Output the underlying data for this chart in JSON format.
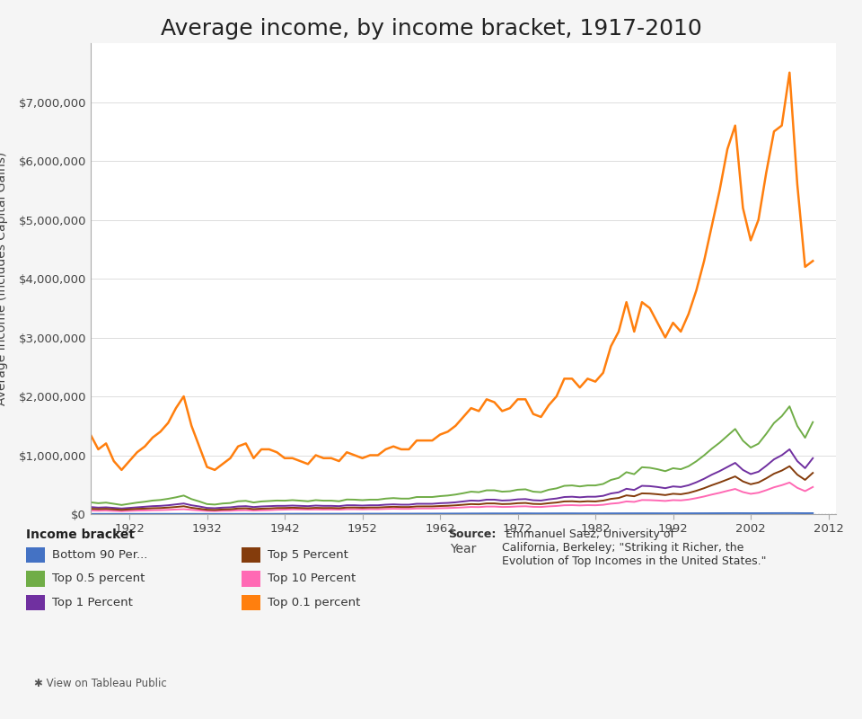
{
  "title": "Average income, by income bracket, 1917-2010",
  "xlabel": "Year",
  "ylabel": "Average Income (Includes Capital Gains)",
  "background_color": "#ffffff",
  "series": {
    "Bottom 90 Per...": {
      "color": "#4472c4",
      "data": {
        "1917": 3000,
        "1918": 3200,
        "1919": 3300,
        "1920": 3200,
        "1921": 2900,
        "1922": 3100,
        "1923": 3400,
        "1924": 3500,
        "1925": 3600,
        "1926": 3700,
        "1927": 3800,
        "1928": 3900,
        "1929": 4000,
        "1930": 3600,
        "1931": 3200,
        "1932": 2800,
        "1933": 2700,
        "1934": 2900,
        "1935": 3100,
        "1936": 3300,
        "1937": 3500,
        "1938": 3200,
        "1939": 3400,
        "1940": 3700,
        "1941": 4300,
        "1942": 5000,
        "1943": 5500,
        "1944": 5800,
        "1945": 5600,
        "1946": 5400,
        "1947": 5500,
        "1948": 5700,
        "1949": 5600,
        "1950": 6000,
        "1951": 6400,
        "1952": 6700,
        "1953": 7000,
        "1954": 6900,
        "1955": 7300,
        "1956": 7600,
        "1957": 7700,
        "1958": 7700,
        "1959": 8100,
        "1960": 8300,
        "1961": 8400,
        "1962": 8700,
        "1963": 8900,
        "1964": 9300,
        "1965": 9700,
        "1966": 10200,
        "1967": 10500,
        "1968": 11100,
        "1969": 11400,
        "1970": 11300,
        "1971": 11500,
        "1972": 12000,
        "1973": 12400,
        "1974": 11800,
        "1975": 11500,
        "1976": 12000,
        "1977": 12200,
        "1978": 12600,
        "1979": 12500,
        "1980": 12000,
        "1981": 12100,
        "1982": 11800,
        "1983": 12000,
        "1984": 12500,
        "1985": 12700,
        "1986": 13100,
        "1987": 13300,
        "1988": 13500,
        "1989": 13400,
        "1990": 13300,
        "1991": 13000,
        "1992": 13200,
        "1993": 13000,
        "1994": 13300,
        "1995": 13700,
        "1996": 14000,
        "1997": 14500,
        "1998": 15000,
        "1999": 15500,
        "2000": 15800,
        "2001": 15400,
        "2002": 15000,
        "2003": 15200,
        "2004": 15600,
        "2005": 16000,
        "2006": 16300,
        "2007": 16500,
        "2008": 15800,
        "2009": 15000,
        "2010": 15500
      }
    },
    "Top 1 Percent": {
      "color": "#7030a0",
      "data": {
        "1917": 120000,
        "1918": 110000,
        "1919": 115000,
        "1920": 105000,
        "1921": 95000,
        "1922": 105000,
        "1923": 115000,
        "1924": 125000,
        "1925": 135000,
        "1926": 140000,
        "1927": 150000,
        "1928": 165000,
        "1929": 180000,
        "1930": 150000,
        "1931": 130000,
        "1932": 105000,
        "1933": 100000,
        "1934": 110000,
        "1935": 115000,
        "1936": 130000,
        "1937": 135000,
        "1938": 120000,
        "1939": 130000,
        "1940": 135000,
        "1941": 140000,
        "1942": 140000,
        "1943": 145000,
        "1944": 140000,
        "1945": 135000,
        "1946": 145000,
        "1947": 140000,
        "1948": 140000,
        "1949": 135000,
        "1950": 150000,
        "1951": 150000,
        "1952": 145000,
        "1953": 150000,
        "1954": 150000,
        "1955": 160000,
        "1956": 165000,
        "1957": 160000,
        "1958": 160000,
        "1959": 175000,
        "1960": 175000,
        "1961": 175000,
        "1962": 185000,
        "1963": 190000,
        "1964": 200000,
        "1965": 215000,
        "1966": 230000,
        "1967": 225000,
        "1968": 245000,
        "1969": 245000,
        "1970": 230000,
        "1971": 235000,
        "1972": 250000,
        "1973": 255000,
        "1974": 235000,
        "1975": 230000,
        "1976": 250000,
        "1977": 265000,
        "1978": 290000,
        "1979": 295000,
        "1980": 285000,
        "1981": 295000,
        "1982": 295000,
        "1983": 310000,
        "1984": 350000,
        "1985": 370000,
        "1986": 430000,
        "1987": 410000,
        "1988": 480000,
        "1989": 475000,
        "1990": 460000,
        "1991": 440000,
        "1992": 470000,
        "1993": 460000,
        "1994": 490000,
        "1995": 540000,
        "1996": 600000,
        "1997": 670000,
        "1998": 730000,
        "1999": 800000,
        "2000": 870000,
        "2001": 750000,
        "2002": 680000,
        "2003": 720000,
        "2004": 820000,
        "2005": 930000,
        "2006": 1000000,
        "2007": 1100000,
        "2008": 900000,
        "2009": 780000,
        "2010": 950000
      }
    },
    "Top 10 Percent": {
      "color": "#ff69b4",
      "data": {
        "1917": 60000,
        "1918": 58000,
        "1919": 60000,
        "1920": 55000,
        "1921": 50000,
        "1922": 55000,
        "1923": 60000,
        "1924": 62000,
        "1925": 66000,
        "1926": 68000,
        "1927": 72000,
        "1928": 78000,
        "1929": 83000,
        "1930": 72000,
        "1931": 63000,
        "1932": 54000,
        "1933": 52000,
        "1934": 56000,
        "1935": 58000,
        "1936": 64000,
        "1937": 66000,
        "1938": 60000,
        "1939": 64000,
        "1940": 67000,
        "1941": 73000,
        "1942": 76000,
        "1943": 80000,
        "1944": 79000,
        "1945": 77000,
        "1946": 78000,
        "1947": 77000,
        "1948": 78000,
        "1949": 76000,
        "1950": 82000,
        "1951": 83000,
        "1952": 81000,
        "1953": 84000,
        "1954": 83000,
        "1955": 88000,
        "1956": 91000,
        "1957": 89000,
        "1958": 89000,
        "1959": 95000,
        "1960": 96000,
        "1961": 96000,
        "1962": 100000,
        "1963": 103000,
        "1964": 108000,
        "1965": 114000,
        "1966": 121000,
        "1967": 119000,
        "1968": 128000,
        "1969": 128000,
        "1970": 121000,
        "1971": 123000,
        "1972": 130000,
        "1973": 133000,
        "1974": 123000,
        "1975": 121000,
        "1976": 131000,
        "1977": 138000,
        "1978": 150000,
        "1979": 152000,
        "1980": 147000,
        "1981": 152000,
        "1982": 150000,
        "1983": 158000,
        "1984": 177000,
        "1985": 188000,
        "1986": 215000,
        "1987": 207000,
        "1988": 239000,
        "1989": 237000,
        "1990": 231000,
        "1991": 223000,
        "1992": 237000,
        "1993": 233000,
        "1994": 247000,
        "1995": 271000,
        "1996": 299000,
        "1997": 332000,
        "1998": 361000,
        "1999": 395000,
        "2000": 427000,
        "2001": 374000,
        "2002": 344000,
        "2003": 363000,
        "2004": 406000,
        "2005": 455000,
        "2006": 491000,
        "2007": 536000,
        "2008": 446000,
        "2009": 390000,
        "2010": 460000
      }
    },
    "Top 0.5 percent": {
      "color": "#70ad47",
      "data": {
        "1917": 200000,
        "1918": 185000,
        "1919": 195000,
        "1920": 175000,
        "1921": 155000,
        "1922": 175000,
        "1923": 195000,
        "1924": 210000,
        "1925": 230000,
        "1926": 240000,
        "1927": 260000,
        "1928": 285000,
        "1929": 315000,
        "1930": 255000,
        "1931": 215000,
        "1932": 170000,
        "1933": 162000,
        "1934": 180000,
        "1935": 188000,
        "1936": 218000,
        "1937": 225000,
        "1938": 197000,
        "1939": 215000,
        "1940": 222000,
        "1941": 230000,
        "1942": 228000,
        "1943": 237000,
        "1944": 228000,
        "1945": 218000,
        "1946": 237000,
        "1947": 228000,
        "1948": 228000,
        "1949": 218000,
        "1950": 248000,
        "1951": 245000,
        "1952": 237000,
        "1953": 245000,
        "1954": 245000,
        "1955": 263000,
        "1956": 272000,
        "1957": 263000,
        "1958": 263000,
        "1959": 290000,
        "1960": 290000,
        "1961": 290000,
        "1962": 305000,
        "1963": 315000,
        "1964": 332000,
        "1965": 355000,
        "1966": 381000,
        "1967": 372000,
        "1968": 404000,
        "1969": 404000,
        "1970": 381000,
        "1971": 388000,
        "1972": 414000,
        "1973": 421000,
        "1974": 381000,
        "1975": 372000,
        "1976": 414000,
        "1977": 437000,
        "1978": 480000,
        "1979": 487000,
        "1980": 470000,
        "1981": 487000,
        "1982": 487000,
        "1983": 512000,
        "1984": 580000,
        "1985": 614000,
        "1986": 712000,
        "1987": 678000,
        "1988": 796000,
        "1989": 787000,
        "1990": 762000,
        "1991": 729000,
        "1992": 779000,
        "1993": 762000,
        "1994": 813000,
        "1995": 897000,
        "1996": 998000,
        "1997": 1112000,
        "1998": 1213000,
        "1999": 1330000,
        "2000": 1446000,
        "2001": 1247000,
        "2002": 1130000,
        "2003": 1196000,
        "2004": 1363000,
        "2005": 1547000,
        "2006": 1663000,
        "2007": 1830000,
        "2008": 1497000,
        "2009": 1297000,
        "2010": 1563000
      }
    },
    "Top 5 Percent": {
      "color": "#843c0c",
      "data": {
        "1917": 90000,
        "1918": 85000,
        "1919": 89000,
        "1920": 80000,
        "1921": 72000,
        "1922": 80000,
        "1923": 89000,
        "1924": 93000,
        "1925": 100000,
        "1926": 103000,
        "1927": 111000,
        "1928": 121000,
        "1929": 133000,
        "1930": 107000,
        "1931": 91000,
        "1932": 74000,
        "1933": 70000,
        "1934": 78000,
        "1935": 82000,
        "1936": 95000,
        "1937": 98000,
        "1938": 85000,
        "1939": 92000,
        "1940": 96000,
        "1941": 103000,
        "1942": 104000,
        "1943": 108000,
        "1944": 104000,
        "1945": 100000,
        "1946": 106000,
        "1947": 103000,
        "1948": 104000,
        "1949": 100000,
        "1950": 111000,
        "1951": 112000,
        "1952": 108000,
        "1953": 112000,
        "1954": 112000,
        "1955": 119000,
        "1956": 124000,
        "1957": 120000,
        "1958": 120000,
        "1959": 130000,
        "1960": 131000,
        "1961": 131000,
        "1962": 137000,
        "1963": 141000,
        "1964": 149000,
        "1965": 159000,
        "1966": 170000,
        "1967": 166000,
        "1968": 181000,
        "1969": 181000,
        "1970": 170000,
        "1971": 173000,
        "1972": 185000,
        "1973": 189000,
        "1974": 173000,
        "1975": 170000,
        "1976": 185000,
        "1977": 196000,
        "1978": 215000,
        "1979": 218000,
        "1980": 210000,
        "1981": 218000,
        "1982": 215000,
        "1983": 229000,
        "1984": 258000,
        "1985": 274000,
        "1986": 318000,
        "1987": 303000,
        "1988": 352000,
        "1989": 348000,
        "1990": 337000,
        "1991": 323000,
        "1992": 345000,
        "1993": 337000,
        "1994": 359000,
        "1995": 396000,
        "1996": 440000,
        "1997": 491000,
        "1998": 537000,
        "1999": 588000,
        "2000": 640000,
        "2001": 555000,
        "2002": 507000,
        "2003": 537000,
        "2004": 607000,
        "2005": 686000,
        "2006": 739000,
        "2007": 813000,
        "2008": 670000,
        "2009": 581000,
        "2010": 700000
      }
    },
    "Top 0.1 percent": {
      "color": "#ff7f0e",
      "data": {
        "1917": 1350000,
        "1918": 1100000,
        "1919": 1200000,
        "1920": 900000,
        "1921": 750000,
        "1922": 900000,
        "1923": 1050000,
        "1924": 1150000,
        "1925": 1300000,
        "1926": 1400000,
        "1927": 1550000,
        "1928": 1800000,
        "1929": 2000000,
        "1930": 1500000,
        "1931": 1150000,
        "1932": 800000,
        "1933": 750000,
        "1934": 850000,
        "1935": 950000,
        "1936": 1150000,
        "1937": 1200000,
        "1938": 950000,
        "1939": 1100000,
        "1940": 1100000,
        "1941": 1050000,
        "1942": 950000,
        "1943": 950000,
        "1944": 900000,
        "1945": 850000,
        "1946": 1000000,
        "1947": 950000,
        "1948": 950000,
        "1949": 900000,
        "1950": 1050000,
        "1951": 1000000,
        "1952": 950000,
        "1953": 1000000,
        "1954": 1000000,
        "1955": 1100000,
        "1956": 1150000,
        "1957": 1100000,
        "1958": 1100000,
        "1959": 1250000,
        "1960": 1250000,
        "1961": 1250000,
        "1962": 1350000,
        "1963": 1400000,
        "1964": 1500000,
        "1965": 1650000,
        "1966": 1800000,
        "1967": 1750000,
        "1968": 1950000,
        "1969": 1900000,
        "1970": 1750000,
        "1971": 1800000,
        "1972": 1950000,
        "1973": 1950000,
        "1974": 1700000,
        "1975": 1650000,
        "1976": 1850000,
        "1977": 2000000,
        "1978": 2300000,
        "1979": 2300000,
        "1980": 2150000,
        "1981": 2300000,
        "1982": 2250000,
        "1983": 2400000,
        "1984": 2850000,
        "1985": 3100000,
        "1986": 3600000,
        "1987": 3100000,
        "1988": 3600000,
        "1989": 3500000,
        "1990": 3250000,
        "1991": 3000000,
        "1992": 3250000,
        "1993": 3100000,
        "1994": 3400000,
        "1995": 3800000,
        "1996": 4300000,
        "1997": 4900000,
        "1998": 5500000,
        "1999": 6200000,
        "2000": 6600000,
        "2001": 5200000,
        "2002": 4650000,
        "2003": 5000000,
        "2004": 5800000,
        "2005": 6500000,
        "2006": 6600000,
        "2007": 7500000,
        "2008": 5600000,
        "2009": 4200000,
        "2010": 4300000
      }
    }
  },
  "ylim": [
    0,
    8000000
  ],
  "yticks": [
    0,
    1000000,
    2000000,
    3000000,
    4000000,
    5000000,
    6000000,
    7000000
  ],
  "ytick_labels": [
    "$0",
    "$1,000,000",
    "$2,000,000",
    "$3,000,000",
    "$4,000,000",
    "$5,000,000",
    "$6,000,000",
    "$7,000,000"
  ],
  "xlim": [
    1917,
    2013
  ],
  "xticks": [
    1922,
    1932,
    1942,
    1952,
    1962,
    1972,
    1982,
    1992,
    2002,
    2012
  ],
  "legend_title": "Income bracket",
  "legend_items": [
    {
      "label": "Bottom 90 Per...",
      "color": "#4472c4"
    },
    {
      "label": "Top 0.5 percent",
      "color": "#70ad47"
    },
    {
      "label": "Top 1 Percent",
      "color": "#7030a0"
    },
    {
      "label": "Top 5 Percent",
      "color": "#843c0c"
    },
    {
      "label": "Top 10 Percent",
      "color": "#ff69b4"
    },
    {
      "label": "Top 0.1 percent",
      "color": "#ff7f0e"
    }
  ],
  "source_bold": "Source:",
  "source_rest": " Emmanuel Saez, University of\nCalifornia, Berkeley; \"Striking it Richer, the\nEvolution of Top Incomes in the United States.\"",
  "plot_bg": "#ffffff",
  "outer_bg": "#f5f5f5",
  "border_color": "#aaaaaa",
  "grid_color": "#dddddd",
  "title_fontsize": 18,
  "axis_label_fontsize": 10,
  "tick_fontsize": 9.5,
  "legend_fontsize": 9.5
}
